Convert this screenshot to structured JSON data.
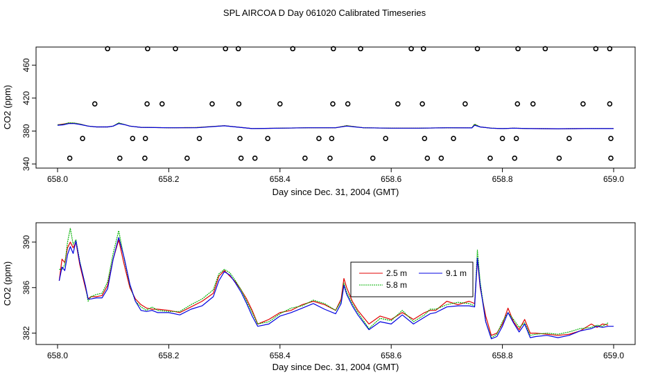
{
  "title": "SPL AIRCOA D  Day 061020  Calibrated Timeseries",
  "colors": {
    "red": "#e00000",
    "green": "#00b000",
    "blue": "#0000e0",
    "axis": "#000000"
  },
  "chart_data": [
    {
      "type": "line",
      "xlabel": "Day since Dec. 31, 2004 (GMT)",
      "ylabel": "CO2 (ppm)",
      "xlim": [
        658.0,
        659.0
      ],
      "ylim": [
        335,
        482
      ],
      "xticks": [
        658.0,
        658.2,
        658.4,
        658.6,
        658.8,
        659.0
      ],
      "xtick_labels": [
        "658.0",
        "658.2",
        "658.4",
        "658.6",
        "658.8",
        "659.0"
      ],
      "yticks": [
        340,
        380,
        420,
        460
      ],
      "ytick_labels": [
        "340",
        "380",
        "420",
        "460"
      ],
      "scatter_points": {
        "x": [
          658.09,
          658.162,
          658.212,
          658.302,
          658.325,
          658.423,
          658.496,
          658.545,
          658.636,
          658.658,
          658.755,
          658.828,
          658.877,
          658.968,
          658.993,
          658.067,
          658.161,
          658.188,
          658.278,
          658.326,
          658.4,
          658.495,
          658.522,
          658.612,
          658.656,
          658.733,
          658.827,
          658.855,
          658.945,
          658.993,
          658.045,
          658.135,
          658.158,
          658.255,
          658.328,
          658.378,
          658.47,
          658.493,
          658.59,
          658.66,
          658.712,
          658.8,
          658.825,
          658.92,
          658.995,
          658.022,
          658.112,
          658.157,
          658.233,
          658.33,
          658.355,
          658.445,
          658.49,
          658.567,
          658.665,
          658.69,
          658.778,
          658.822,
          658.902,
          658.995
        ],
        "y": [
          480,
          480,
          480,
          480,
          480,
          480,
          480,
          480,
          480,
          480,
          480,
          480,
          480,
          480,
          480,
          413,
          413,
          413,
          413,
          413,
          413,
          413,
          413,
          413,
          413,
          413,
          413,
          413,
          413,
          413,
          371,
          371,
          371,
          371,
          371,
          371,
          371,
          371,
          371,
          371,
          371,
          371,
          371,
          371,
          371,
          347,
          347,
          347,
          347,
          347,
          347,
          347,
          347,
          347,
          347,
          347,
          347,
          347,
          347,
          347
        ]
      },
      "series": [
        {
          "name": "2.5 m",
          "color": "#e00000",
          "x": [
            658.0,
            658.01,
            658.02,
            658.03,
            658.04,
            658.055,
            658.07,
            658.09,
            658.1,
            658.11,
            658.12,
            658.13,
            658.15,
            658.2,
            658.25,
            658.3,
            658.35,
            658.4,
            658.45,
            658.5,
            658.52,
            658.55,
            658.6,
            658.65,
            658.7,
            658.745,
            658.75,
            658.76,
            658.78,
            658.8,
            658.82,
            658.85,
            658.9,
            658.95,
            659.0
          ],
          "y": [
            387.5,
            388.5,
            389.5,
            389.5,
            388.5,
            386.0,
            385.0,
            385.0,
            386.0,
            389.5,
            388.0,
            386.0,
            384.5,
            384.0,
            384.2,
            386.5,
            383.0,
            383.5,
            384.0,
            384.0,
            386.5,
            384.0,
            383.5,
            383.5,
            384.0,
            383.8,
            388.0,
            385.0,
            383.5,
            383.0,
            383.5,
            383.0,
            382.8,
            383.0,
            383.0
          ]
        },
        {
          "name": "5.8 m",
          "color": "#00b000",
          "x": [
            658.0,
            658.01,
            658.02,
            658.03,
            658.04,
            658.055,
            658.07,
            658.09,
            658.1,
            658.11,
            658.12,
            658.13,
            658.15,
            658.2,
            658.25,
            658.3,
            658.35,
            658.4,
            658.45,
            658.5,
            658.52,
            658.55,
            658.6,
            658.65,
            658.7,
            658.745,
            658.75,
            658.76,
            658.78,
            658.8,
            658.82,
            658.85,
            658.9,
            658.95,
            659.0
          ],
          "y": [
            387.5,
            388.0,
            390.0,
            389.8,
            388.5,
            386.0,
            385.0,
            385.0,
            386.0,
            390.0,
            388.0,
            386.0,
            384.5,
            384.0,
            384.2,
            386.5,
            383.0,
            383.5,
            384.0,
            384.0,
            386.5,
            384.0,
            383.5,
            383.5,
            384.0,
            383.8,
            388.5,
            385.0,
            383.5,
            383.0,
            383.5,
            383.0,
            382.8,
            383.0,
            383.0
          ]
        },
        {
          "name": "9.1 m",
          "color": "#0000e0",
          "x": [
            658.0,
            658.01,
            658.02,
            658.03,
            658.04,
            658.055,
            658.07,
            658.09,
            658.1,
            658.11,
            658.12,
            658.13,
            658.15,
            658.2,
            658.25,
            658.3,
            658.35,
            658.4,
            658.45,
            658.5,
            658.52,
            658.55,
            658.6,
            658.65,
            658.7,
            658.745,
            658.75,
            658.76,
            658.78,
            658.8,
            658.82,
            658.85,
            658.9,
            658.95,
            659.0
          ],
          "y": [
            387.0,
            387.5,
            389.0,
            389.0,
            388.0,
            386.0,
            385.0,
            385.0,
            386.0,
            389.0,
            387.8,
            386.0,
            384.5,
            384.0,
            384.0,
            386.3,
            383.0,
            383.5,
            384.0,
            384.0,
            386.0,
            384.0,
            383.5,
            383.5,
            384.0,
            383.8,
            387.0,
            385.0,
            383.5,
            383.0,
            383.5,
            383.0,
            382.8,
            383.0,
            383.0
          ]
        }
      ]
    },
    {
      "type": "line",
      "xlabel": "Day since Dec. 31, 2004 (GMT)",
      "ylabel": "CO2 (ppm)",
      "xlim": [
        658.0,
        659.0
      ],
      "ylim": [
        381.0,
        391.7
      ],
      "xticks": [
        658.0,
        658.2,
        658.4,
        658.6,
        658.8,
        659.0
      ],
      "xtick_labels": [
        "658.0",
        "658.2",
        "658.4",
        "658.6",
        "658.8",
        "659.0"
      ],
      "yticks": [
        382,
        386,
        390
      ],
      "ytick_labels": [
        "382",
        "386",
        "390"
      ],
      "legend": {
        "placement": "center-right",
        "entries": [
          "2.5 m",
          "9.1 m",
          "5.8 m"
        ]
      },
      "series": [
        {
          "name": "2.5 m",
          "color": "#e00000",
          "x": [
            658.003,
            658.008,
            658.013,
            658.018,
            658.023,
            658.028,
            658.033,
            658.04,
            658.05,
            658.055,
            658.06,
            658.07,
            658.08,
            658.09,
            658.1,
            658.11,
            658.12,
            658.13,
            658.14,
            658.15,
            658.16,
            658.17,
            658.18,
            658.2,
            658.22,
            658.24,
            658.26,
            658.28,
            658.29,
            658.3,
            658.31,
            658.32,
            658.33,
            658.34,
            658.35,
            658.36,
            658.38,
            658.4,
            658.42,
            658.44,
            658.46,
            658.48,
            658.5,
            658.51,
            658.515,
            658.52,
            658.53,
            658.54,
            658.56,
            658.58,
            658.6,
            658.62,
            658.64,
            658.66,
            658.67,
            658.68,
            658.7,
            658.72,
            658.74,
            658.75,
            658.755,
            658.76,
            658.77,
            658.78,
            658.79,
            658.8,
            658.81,
            658.82,
            658.83,
            658.84,
            658.85,
            658.86,
            658.88,
            658.9,
            658.92,
            658.94,
            658.96,
            658.97,
            658.98,
            658.99
          ],
          "y": [
            386.6,
            388.5,
            388.2,
            389.5,
            390.0,
            389.5,
            390.0,
            388.0,
            386.0,
            385.0,
            385.2,
            385.2,
            385.3,
            386.2,
            388.5,
            390.2,
            388.0,
            386.0,
            385.0,
            384.5,
            384.2,
            384.1,
            384.1,
            384.0,
            383.8,
            384.3,
            384.8,
            385.5,
            387.0,
            387.5,
            387.0,
            386.5,
            385.8,
            385.0,
            384.0,
            382.8,
            383.2,
            383.8,
            384.0,
            384.5,
            384.8,
            384.5,
            384.0,
            385.0,
            386.8,
            386.0,
            384.8,
            384.0,
            382.8,
            383.5,
            383.2,
            383.8,
            383.2,
            383.8,
            384.0,
            384.0,
            384.8,
            384.5,
            384.8,
            384.6,
            388.5,
            386.0,
            383.5,
            381.8,
            382.0,
            382.8,
            384.2,
            383.0,
            382.3,
            383.2,
            382.0,
            382.0,
            381.9,
            381.8,
            381.9,
            382.2,
            382.8,
            382.5,
            382.8,
            382.7
          ]
        },
        {
          "name": "5.8 m",
          "color": "#00b000",
          "x": [
            658.003,
            658.008,
            658.013,
            658.018,
            658.023,
            658.028,
            658.033,
            658.04,
            658.05,
            658.055,
            658.06,
            658.07,
            658.08,
            658.09,
            658.1,
            658.11,
            658.12,
            658.13,
            658.14,
            658.15,
            658.16,
            658.17,
            658.18,
            658.2,
            658.22,
            658.24,
            658.26,
            658.28,
            658.29,
            658.3,
            658.31,
            658.32,
            658.33,
            658.34,
            658.35,
            658.36,
            658.38,
            658.4,
            658.42,
            658.44,
            658.46,
            658.48,
            658.5,
            658.51,
            658.515,
            658.52,
            658.53,
            658.54,
            658.56,
            658.58,
            658.6,
            658.62,
            658.64,
            658.66,
            658.67,
            658.68,
            658.7,
            658.72,
            658.74,
            658.75,
            658.755,
            658.76,
            658.77,
            658.78,
            658.79,
            658.8,
            658.81,
            658.82,
            658.83,
            658.84,
            658.85,
            658.86,
            658.88,
            658.9,
            658.92,
            658.94,
            658.96,
            658.97,
            658.98,
            658.99
          ],
          "y": [
            387.6,
            387.6,
            388.0,
            390.0,
            391.2,
            389.8,
            390.2,
            388.3,
            386.2,
            384.8,
            385.2,
            385.4,
            385.5,
            386.5,
            389.0,
            391.0,
            388.5,
            386.2,
            384.8,
            384.3,
            384.0,
            384.3,
            384.0,
            383.9,
            383.9,
            384.5,
            385.0,
            385.8,
            387.2,
            387.6,
            387.3,
            386.6,
            385.8,
            384.8,
            383.8,
            382.8,
            383.0,
            383.7,
            384.2,
            384.4,
            384.9,
            384.6,
            384.0,
            384.8,
            386.4,
            385.6,
            384.6,
            383.8,
            382.4,
            383.3,
            383.1,
            384.0,
            383.0,
            383.6,
            384.1,
            384.1,
            384.5,
            384.7,
            384.6,
            384.4,
            389.3,
            386.5,
            383.0,
            381.6,
            381.9,
            383.0,
            383.8,
            383.2,
            382.5,
            382.9,
            381.8,
            381.9,
            382.0,
            381.9,
            382.1,
            382.4,
            382.5,
            382.7,
            382.6,
            382.9
          ]
        },
        {
          "name": "9.1 m",
          "color": "#0000e0",
          "x": [
            658.003,
            658.008,
            658.013,
            658.018,
            658.023,
            658.028,
            658.033,
            658.04,
            658.05,
            658.055,
            658.06,
            658.07,
            658.08,
            658.09,
            658.1,
            658.11,
            658.12,
            658.13,
            658.14,
            658.15,
            658.16,
            658.17,
            658.18,
            658.2,
            658.22,
            658.24,
            658.26,
            658.28,
            658.29,
            658.3,
            658.31,
            658.32,
            658.33,
            658.34,
            658.35,
            658.36,
            658.38,
            658.4,
            658.42,
            658.44,
            658.46,
            658.48,
            658.5,
            658.51,
            658.515,
            658.52,
            658.53,
            658.54,
            658.56,
            658.58,
            658.6,
            658.62,
            658.64,
            658.66,
            658.67,
            658.68,
            658.7,
            658.72,
            658.74,
            658.75,
            658.755,
            658.76,
            658.77,
            658.78,
            658.79,
            658.8,
            658.81,
            658.82,
            658.83,
            658.84,
            658.85,
            658.86,
            658.88,
            658.9,
            658.92,
            658.94,
            658.96,
            658.97,
            658.98,
            658.99,
            659.0
          ],
          "y": [
            386.6,
            387.8,
            387.5,
            388.9,
            389.6,
            389.0,
            390.1,
            388.2,
            386.2,
            385.0,
            385.0,
            385.1,
            385.1,
            385.9,
            388.5,
            390.4,
            388.6,
            386.3,
            384.8,
            384.0,
            383.9,
            384.0,
            383.8,
            383.8,
            383.6,
            384.1,
            384.4,
            385.2,
            386.6,
            387.4,
            387.1,
            386.4,
            385.6,
            384.6,
            383.5,
            382.6,
            382.8,
            383.5,
            383.8,
            384.2,
            384.6,
            384.1,
            383.7,
            384.6,
            386.2,
            385.4,
            384.4,
            383.6,
            382.3,
            383.0,
            382.8,
            383.6,
            382.8,
            383.4,
            383.7,
            383.8,
            384.3,
            384.4,
            384.4,
            384.3,
            388.6,
            386.2,
            383.0,
            381.5,
            381.7,
            382.6,
            383.8,
            382.9,
            382.1,
            382.8,
            381.6,
            381.7,
            381.8,
            381.6,
            381.8,
            382.2,
            382.4,
            382.6,
            382.5,
            382.6,
            382.6
          ]
        }
      ]
    }
  ]
}
